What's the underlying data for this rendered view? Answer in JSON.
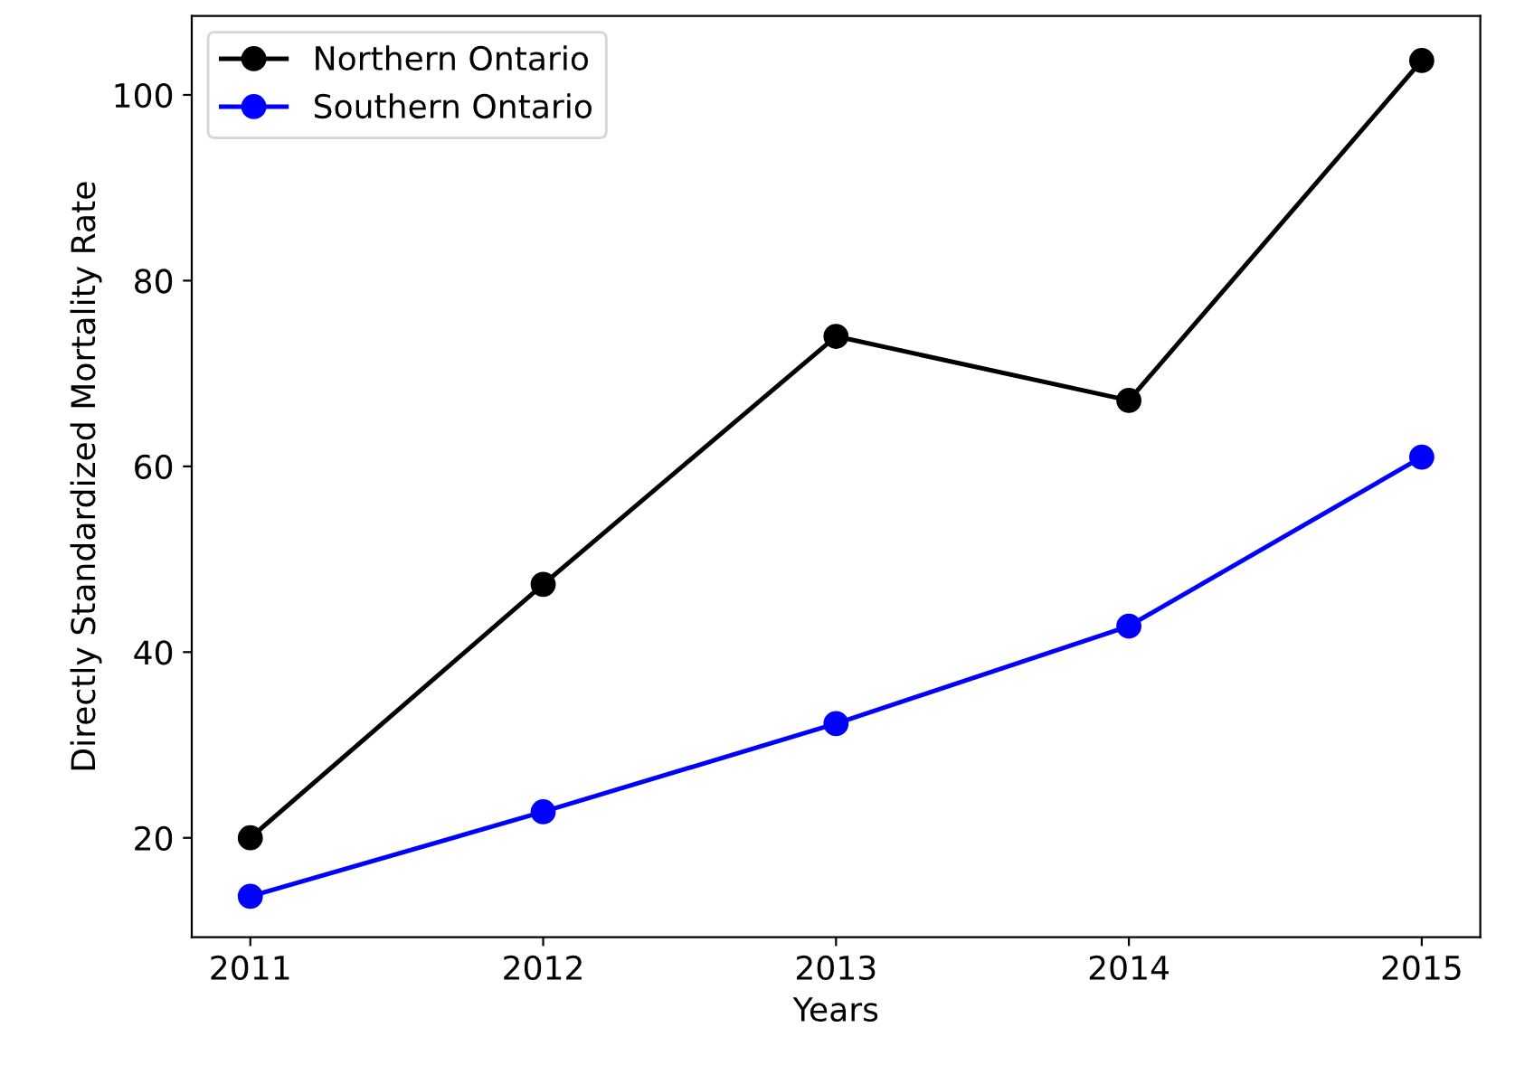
{
  "chart_data": {
    "type": "line",
    "xlabel": "Years",
    "ylabel": "Directly Standardized Mortality Rate",
    "x": [
      2011,
      2012,
      2013,
      2014,
      2015
    ],
    "series": [
      {
        "name": "Northern Ontario",
        "color": "#000000",
        "values": [
          20.0,
          47.3,
          74.0,
          67.1,
          103.7
        ]
      },
      {
        "name": "Southern Ontario",
        "color": "#0000ff",
        "values": [
          13.7,
          22.8,
          32.3,
          42.8,
          61.0
        ]
      }
    ],
    "xlim": [
      2010.8,
      2015.2
    ],
    "xticks": [
      2011,
      2012,
      2013,
      2014,
      2015
    ],
    "ylim": [
      9.3,
      108.5
    ],
    "yticks": [
      20,
      40,
      60,
      80,
      100
    ],
    "marker": "circle",
    "line_style": "solid",
    "legend": "top left",
    "grid": false
  }
}
